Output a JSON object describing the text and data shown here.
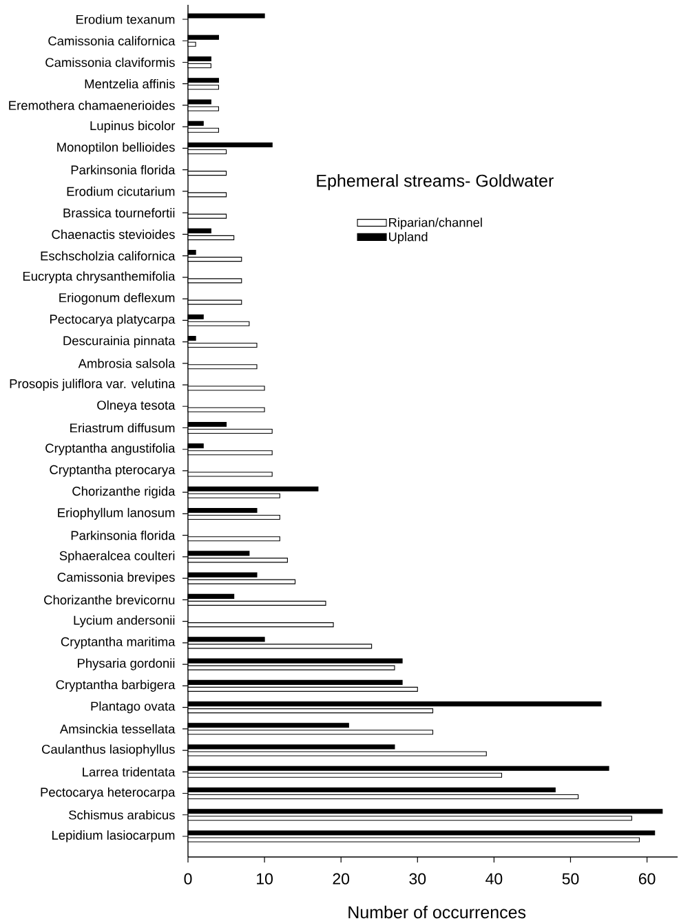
{
  "chart_data": {
    "type": "bar",
    "orientation": "horizontal",
    "title": "Ephemeral streams- Goldwater",
    "xlabel": "Number of occurrences",
    "categories": [
      "Erodium texanum",
      "Camissonia californica",
      "Camissonia claviformis",
      "Mentzelia affinis",
      "Eremothera chamaenerioides",
      "Lupinus bicolor",
      "Monoptilon bellioides",
      "Parkinsonia florida",
      "Erodium cicutarium",
      "Brassica tournefortii",
      "Chaenactis stevioides",
      "Eschscholzia californica",
      "Eucrypta chrysanthemifolia",
      "Eriogonum deflexum",
      "Pectocarya platycarpa",
      "Descurainia pinnata",
      "Ambrosia salsola",
      "Prosopis juliflora var. velutina",
      "Olneya tesota",
      "Eriastrum diffusum",
      "Cryptantha angustifolia",
      "Cryptantha pterocarya",
      "Chorizanthe rigida",
      "Eriophyllum lanosum",
      "Parkinsonia florida",
      "Sphaeralcea coulteri",
      "Camissonia brevipes",
      "Chorizanthe brevicornu",
      "Lycium andersonii",
      "Cryptantha maritima",
      "Physaria gordonii",
      "Cryptantha barbigera",
      "Plantago ovata",
      "Amsinckia tessellata",
      "Caulanthus lasiophyllus",
      "Larrea tridentata",
      "Pectocarya heterocarpa",
      "Schismus arabicus",
      "Lepidium lasiocarpum"
    ],
    "series": [
      {
        "name": "Riparian/channel",
        "color": "#ffffff",
        "values": [
          0,
          1,
          3,
          4,
          4,
          4,
          5,
          5,
          5,
          5,
          6,
          7,
          7,
          7,
          8,
          9,
          9,
          10,
          10,
          11,
          11,
          11,
          12,
          12,
          12,
          13,
          14,
          18,
          19,
          24,
          27,
          30,
          32,
          32,
          39,
          41,
          51,
          58,
          59
        ]
      },
      {
        "name": "Upland",
        "color": "#000000",
        "values": [
          10,
          4,
          3,
          4,
          3,
          2,
          11,
          0,
          0,
          0,
          3,
          1,
          0,
          0,
          2,
          1,
          0,
          0,
          0,
          5,
          2,
          0,
          17,
          9,
          0,
          8,
          9,
          6,
          0,
          10,
          28,
          28,
          54,
          21,
          27,
          55,
          48,
          62,
          61
        ]
      }
    ],
    "xlim": [
      0,
      64
    ],
    "xticks": [
      0,
      10,
      20,
      30,
      40,
      50,
      60
    ],
    "legend": "top right"
  }
}
